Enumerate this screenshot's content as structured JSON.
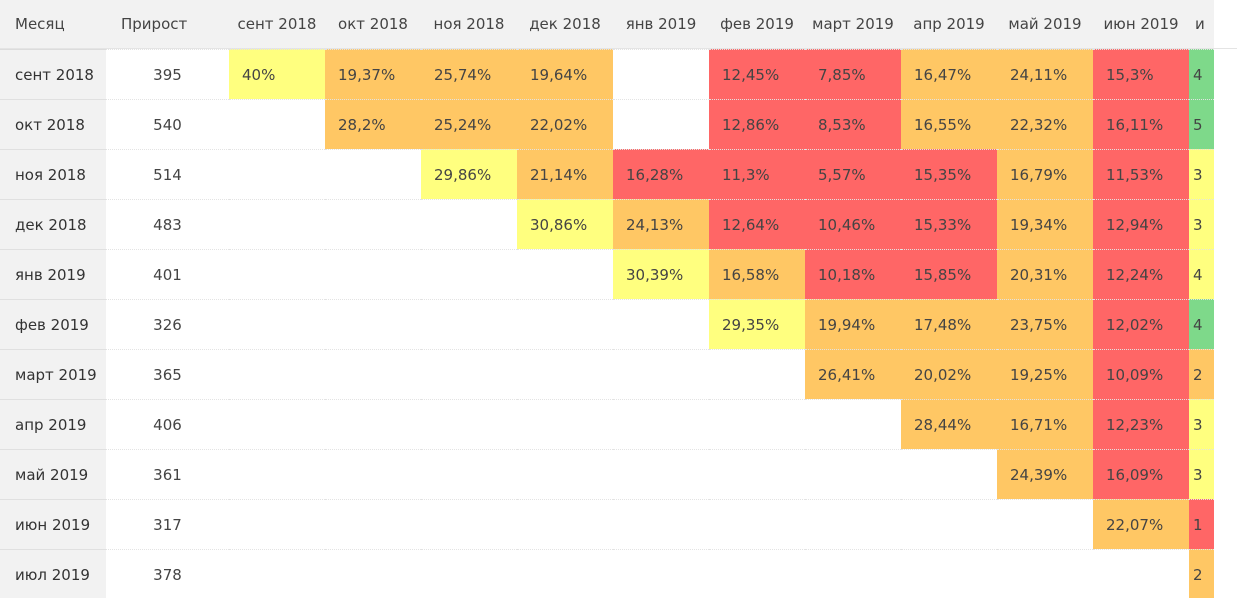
{
  "table": {
    "header": {
      "month_label": "Месяц",
      "growth_label": "Прирост",
      "columns": [
        "сент 2018",
        "окт 2018",
        "ноя 2018",
        "дек 2018",
        "янв 2019",
        "фев 2019",
        "март 2019",
        "апр 2019",
        "май 2019",
        "июн 2019"
      ],
      "last_partial": "и"
    },
    "colors": {
      "yellow": "#ffff7f",
      "orange": "#ffc764",
      "red": "#ff6666",
      "green": "#7ed98a"
    },
    "rows": [
      {
        "month": "сент 2018",
        "growth": "395",
        "cells": [
          {
            "v": "40%",
            "c": "yellow"
          },
          {
            "v": "19,37%",
            "c": "orange"
          },
          {
            "v": "25,74%",
            "c": "orange"
          },
          {
            "v": "19,64%",
            "c": "orange"
          },
          {
            "v": "",
            "c": ""
          },
          {
            "v": "12,45%",
            "c": "red"
          },
          {
            "v": "7,85%",
            "c": "red"
          },
          {
            "v": "16,47%",
            "c": "orange"
          },
          {
            "v": "24,11%",
            "c": "orange"
          },
          {
            "v": "15,3%",
            "c": "red"
          }
        ],
        "last": {
          "v": "4",
          "c": "green"
        }
      },
      {
        "month": "окт 2018",
        "growth": "540",
        "cells": [
          {
            "v": "",
            "c": ""
          },
          {
            "v": "28,2%",
            "c": "orange"
          },
          {
            "v": "25,24%",
            "c": "orange"
          },
          {
            "v": "22,02%",
            "c": "orange"
          },
          {
            "v": "",
            "c": ""
          },
          {
            "v": "12,86%",
            "c": "red"
          },
          {
            "v": "8,53%",
            "c": "red"
          },
          {
            "v": "16,55%",
            "c": "orange"
          },
          {
            "v": "22,32%",
            "c": "orange"
          },
          {
            "v": "16,11%",
            "c": "red"
          }
        ],
        "last": {
          "v": "5",
          "c": "green"
        }
      },
      {
        "month": "ноя 2018",
        "growth": "514",
        "cells": [
          {
            "v": "",
            "c": ""
          },
          {
            "v": "",
            "c": ""
          },
          {
            "v": "29,86%",
            "c": "yellow"
          },
          {
            "v": "21,14%",
            "c": "orange"
          },
          {
            "v": "16,28%",
            "c": "red"
          },
          {
            "v": "11,3%",
            "c": "red"
          },
          {
            "v": "5,57%",
            "c": "red"
          },
          {
            "v": "15,35%",
            "c": "red"
          },
          {
            "v": "16,79%",
            "c": "orange"
          },
          {
            "v": "11,53%",
            "c": "red"
          }
        ],
        "last": {
          "v": "3",
          "c": "yellow"
        }
      },
      {
        "month": "дек 2018",
        "growth": "483",
        "cells": [
          {
            "v": "",
            "c": ""
          },
          {
            "v": "",
            "c": ""
          },
          {
            "v": "",
            "c": ""
          },
          {
            "v": "30,86%",
            "c": "yellow"
          },
          {
            "v": "24,13%",
            "c": "orange"
          },
          {
            "v": "12,64%",
            "c": "red"
          },
          {
            "v": "10,46%",
            "c": "red"
          },
          {
            "v": "15,33%",
            "c": "red"
          },
          {
            "v": "19,34%",
            "c": "orange"
          },
          {
            "v": "12,94%",
            "c": "red"
          }
        ],
        "last": {
          "v": "3",
          "c": "yellow"
        }
      },
      {
        "month": "янв 2019",
        "growth": "401",
        "cells": [
          {
            "v": "",
            "c": ""
          },
          {
            "v": "",
            "c": ""
          },
          {
            "v": "",
            "c": ""
          },
          {
            "v": "",
            "c": ""
          },
          {
            "v": "30,39%",
            "c": "yellow"
          },
          {
            "v": "16,58%",
            "c": "orange"
          },
          {
            "v": "10,18%",
            "c": "red"
          },
          {
            "v": "15,85%",
            "c": "red"
          },
          {
            "v": "20,31%",
            "c": "orange"
          },
          {
            "v": "12,24%",
            "c": "red"
          }
        ],
        "last": {
          "v": "4",
          "c": "yellow"
        }
      },
      {
        "month": "фев 2019",
        "growth": "326",
        "cells": [
          {
            "v": "",
            "c": ""
          },
          {
            "v": "",
            "c": ""
          },
          {
            "v": "",
            "c": ""
          },
          {
            "v": "",
            "c": ""
          },
          {
            "v": "",
            "c": ""
          },
          {
            "v": "29,35%",
            "c": "yellow"
          },
          {
            "v": "19,94%",
            "c": "orange"
          },
          {
            "v": "17,48%",
            "c": "orange"
          },
          {
            "v": "23,75%",
            "c": "orange"
          },
          {
            "v": "12,02%",
            "c": "red"
          }
        ],
        "last": {
          "v": "4",
          "c": "green"
        }
      },
      {
        "month": "март 2019",
        "growth": "365",
        "cells": [
          {
            "v": "",
            "c": ""
          },
          {
            "v": "",
            "c": ""
          },
          {
            "v": "",
            "c": ""
          },
          {
            "v": "",
            "c": ""
          },
          {
            "v": "",
            "c": ""
          },
          {
            "v": "",
            "c": ""
          },
          {
            "v": "26,41%",
            "c": "orange"
          },
          {
            "v": "20,02%",
            "c": "orange"
          },
          {
            "v": "19,25%",
            "c": "orange"
          },
          {
            "v": "10,09%",
            "c": "red"
          }
        ],
        "last": {
          "v": "2",
          "c": "orange"
        }
      },
      {
        "month": "апр 2019",
        "growth": "406",
        "cells": [
          {
            "v": "",
            "c": ""
          },
          {
            "v": "",
            "c": ""
          },
          {
            "v": "",
            "c": ""
          },
          {
            "v": "",
            "c": ""
          },
          {
            "v": "",
            "c": ""
          },
          {
            "v": "",
            "c": ""
          },
          {
            "v": "",
            "c": ""
          },
          {
            "v": "28,44%",
            "c": "orange"
          },
          {
            "v": "16,71%",
            "c": "orange"
          },
          {
            "v": "12,23%",
            "c": "red"
          }
        ],
        "last": {
          "v": "3",
          "c": "yellow"
        }
      },
      {
        "month": "май 2019",
        "growth": "361",
        "cells": [
          {
            "v": "",
            "c": ""
          },
          {
            "v": "",
            "c": ""
          },
          {
            "v": "",
            "c": ""
          },
          {
            "v": "",
            "c": ""
          },
          {
            "v": "",
            "c": ""
          },
          {
            "v": "",
            "c": ""
          },
          {
            "v": "",
            "c": ""
          },
          {
            "v": "",
            "c": ""
          },
          {
            "v": "24,39%",
            "c": "orange"
          },
          {
            "v": "16,09%",
            "c": "red"
          }
        ],
        "last": {
          "v": "3",
          "c": "yellow"
        }
      },
      {
        "month": "июн 2019",
        "growth": "317",
        "cells": [
          {
            "v": "",
            "c": ""
          },
          {
            "v": "",
            "c": ""
          },
          {
            "v": "",
            "c": ""
          },
          {
            "v": "",
            "c": ""
          },
          {
            "v": "",
            "c": ""
          },
          {
            "v": "",
            "c": ""
          },
          {
            "v": "",
            "c": ""
          },
          {
            "v": "",
            "c": ""
          },
          {
            "v": "",
            "c": ""
          },
          {
            "v": "22,07%",
            "c": "orange"
          }
        ],
        "last": {
          "v": "1",
          "c": "red"
        }
      },
      {
        "month": "июл 2019",
        "growth": "378",
        "cells": [
          {
            "v": "",
            "c": ""
          },
          {
            "v": "",
            "c": ""
          },
          {
            "v": "",
            "c": ""
          },
          {
            "v": "",
            "c": ""
          },
          {
            "v": "",
            "c": ""
          },
          {
            "v": "",
            "c": ""
          },
          {
            "v": "",
            "c": ""
          },
          {
            "v": "",
            "c": ""
          },
          {
            "v": "",
            "c": ""
          },
          {
            "v": "",
            "c": ""
          }
        ],
        "last": {
          "v": "2",
          "c": "orange"
        }
      }
    ]
  }
}
